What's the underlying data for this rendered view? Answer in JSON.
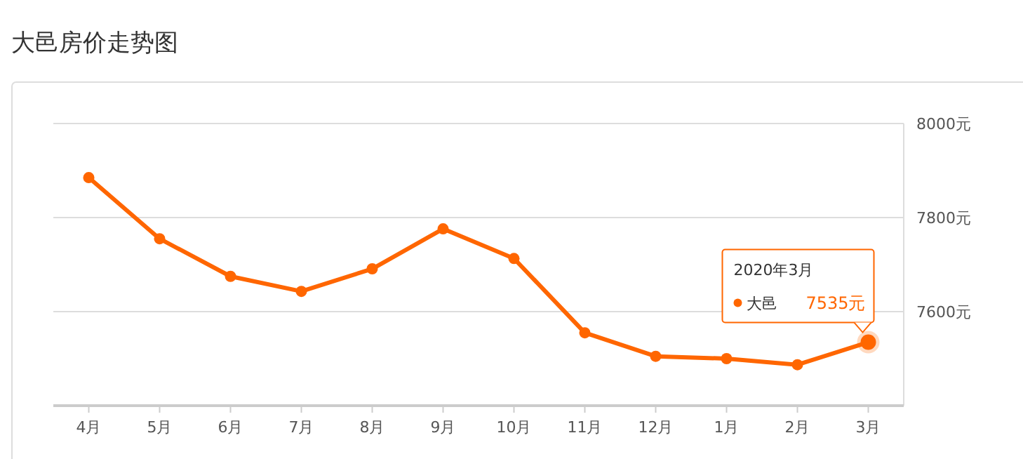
{
  "chart_data": {
    "type": "line",
    "title": "大邑房价走势图",
    "categories": [
      "4月",
      "5月",
      "6月",
      "7月",
      "8月",
      "9月",
      "10月",
      "11月",
      "12月",
      "1月",
      "2月",
      "3月"
    ],
    "series": [
      {
        "name": "大邑",
        "color": "#ff6600",
        "values": [
          7885,
          7755,
          7675,
          7643,
          7691,
          7776,
          7713,
          7555,
          7505,
          7500,
          7487,
          7535
        ],
        "value_labels": [
          null,
          null,
          null,
          null,
          null,
          null,
          null,
          null,
          null,
          null,
          null,
          "7535元"
        ]
      }
    ],
    "ylim": [
      7400,
      8000
    ],
    "yticks": [
      {
        "value": 8000,
        "label": "8000元"
      },
      {
        "value": 7800,
        "label": "7800元"
      },
      {
        "value": 7600,
        "label": "7600元"
      }
    ],
    "grid": "y",
    "marker": "circle",
    "line_style": "solid",
    "annotations": [
      "2020年3月"
    ]
  }
}
